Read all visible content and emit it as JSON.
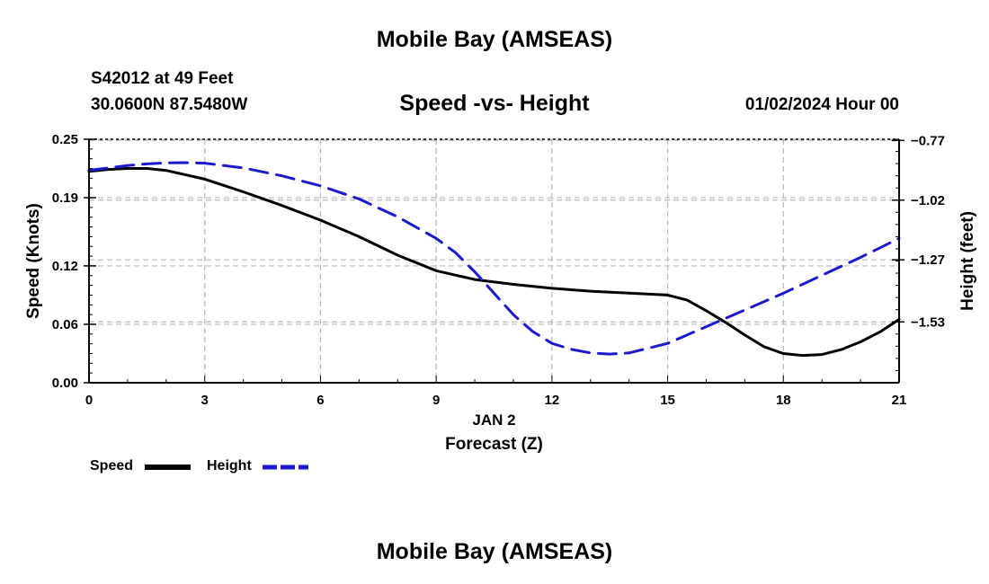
{
  "header": {
    "top_title": "Mobile Bay (AMSEAS)",
    "station": "S42012 at 49 Feet",
    "coordinates": "30.0600N  87.5480W",
    "subtitle": "Speed -vs- Height",
    "datetime": "01/02/2024 Hour 00"
  },
  "footer": {
    "bottom_title": "Mobile Bay (AMSEAS)"
  },
  "legend": {
    "speed_label": "Speed",
    "height_label": "Height"
  },
  "colors": {
    "speed": "#000000",
    "height": "#1a1acc",
    "grid": "#b8b8b8"
  },
  "chart_data": {
    "type": "line",
    "title": "Speed -vs- Height",
    "xlabel": "Forecast (Z)",
    "xlabel_date": "JAN 2",
    "ylabel_left": "Speed (Knots)",
    "ylabel_right": "Height (feet)",
    "xlim": [
      0,
      21
    ],
    "ylim_left": [
      0,
      0.25
    ],
    "ylim_right": [
      -1.785,
      -0.765
    ],
    "x_ticks": [
      0,
      3,
      6,
      9,
      12,
      15,
      18,
      21
    ],
    "x_tick_labels": [
      "0",
      "3",
      "6",
      "9",
      "12",
      "15",
      "18",
      "21"
    ],
    "y_left_ticks": [
      0.0,
      0.06,
      0.12,
      0.19,
      0.25
    ],
    "y_left_tick_labels": [
      "0.00",
      "0.06",
      "0.12",
      "0.19",
      "0.25"
    ],
    "y_right_ticks": [
      -0.77,
      -1.02,
      -1.27,
      -1.53
    ],
    "y_right_tick_labels": [
      "−0.77",
      "−1.02",
      "−1.27",
      "−1.53"
    ],
    "grid": true,
    "legend_position": "bottom-left",
    "series": [
      {
        "name": "Speed",
        "axis": "left",
        "style": "solid",
        "x": [
          0,
          0.5,
          1,
          1.5,
          2,
          3,
          4,
          5,
          6,
          7,
          8,
          9,
          10,
          11,
          12,
          13,
          14,
          15,
          15.5,
          16,
          16.5,
          17,
          17.5,
          18,
          18.5,
          19,
          19.5,
          20,
          20.5,
          21
        ],
        "values": [
          0.217,
          0.219,
          0.22,
          0.22,
          0.218,
          0.209,
          0.196,
          0.182,
          0.167,
          0.15,
          0.131,
          0.115,
          0.106,
          0.101,
          0.097,
          0.094,
          0.092,
          0.09,
          0.085,
          0.074,
          0.062,
          0.049,
          0.037,
          0.03,
          0.028,
          0.029,
          0.034,
          0.042,
          0.052,
          0.065
        ]
      },
      {
        "name": "Height",
        "axis": "right",
        "style": "dashed",
        "x": [
          0,
          0.5,
          1,
          1.5,
          2,
          2.5,
          3,
          4,
          5,
          6,
          7,
          8,
          9,
          9.5,
          10,
          10.5,
          11,
          11.5,
          12,
          12.5,
          13,
          13.5,
          14,
          15,
          16,
          17,
          18,
          19,
          20,
          21
        ],
        "values": [
          -0.895,
          -0.885,
          -0.875,
          -0.868,
          -0.864,
          -0.863,
          -0.865,
          -0.885,
          -0.918,
          -0.96,
          -1.015,
          -1.09,
          -1.18,
          -1.24,
          -1.32,
          -1.41,
          -1.5,
          -1.57,
          -1.62,
          -1.645,
          -1.66,
          -1.665,
          -1.66,
          -1.62,
          -1.55,
          -1.48,
          -1.41,
          -1.335,
          -1.26,
          -1.18
        ]
      }
    ]
  }
}
